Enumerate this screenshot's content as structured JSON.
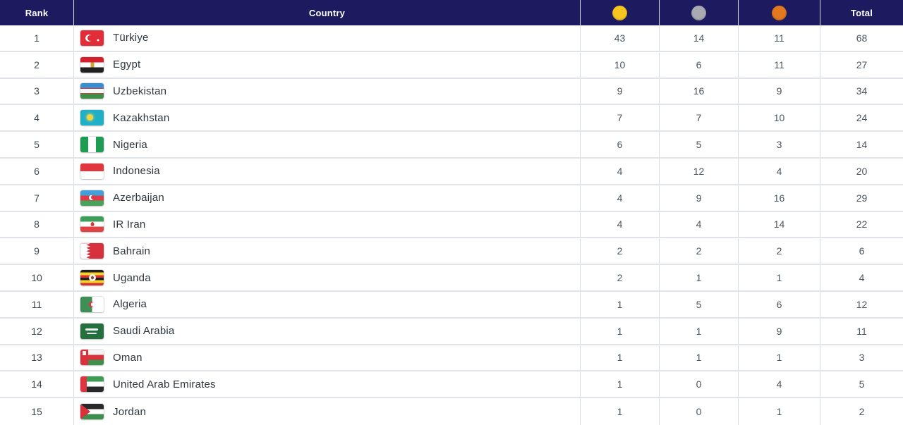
{
  "colors": {
    "header_bg": "#1e1a60",
    "header_text": "#ffffff",
    "gold": "#f6c51f",
    "silver": "#a9abb4",
    "bronze": "#e2791e",
    "row_border": "#e0e4e8",
    "number_text": "#4b555e",
    "country_text": "#2e363d"
  },
  "chart_data": {
    "type": "table",
    "columns": [
      {
        "key": "rank",
        "label": "Rank",
        "header_style": "text"
      },
      {
        "key": "country",
        "label": "Country",
        "header_style": "text"
      },
      {
        "key": "gold",
        "label": "",
        "header_style": "gold-circle-icon"
      },
      {
        "key": "silver",
        "label": "",
        "header_style": "silver-circle-icon"
      },
      {
        "key": "bronze",
        "label": "",
        "header_style": "bronze-circle-icon"
      },
      {
        "key": "total",
        "label": "Total",
        "header_style": "text"
      }
    ],
    "rows": [
      {
        "rank": "1",
        "country": "Türkiye",
        "flag": "turkiye",
        "gold": "43",
        "silver": "14",
        "bronze": "11",
        "total": "68"
      },
      {
        "rank": "2",
        "country": "Egypt",
        "flag": "egypt",
        "gold": "10",
        "silver": "6",
        "bronze": "11",
        "total": "27"
      },
      {
        "rank": "3",
        "country": "Uzbekistan",
        "flag": "uzbekistan",
        "gold": "9",
        "silver": "16",
        "bronze": "9",
        "total": "34"
      },
      {
        "rank": "4",
        "country": "Kazakhstan",
        "flag": "kazakhstan",
        "gold": "7",
        "silver": "7",
        "bronze": "10",
        "total": "24"
      },
      {
        "rank": "5",
        "country": "Nigeria",
        "flag": "nigeria",
        "gold": "6",
        "silver": "5",
        "bronze": "3",
        "total": "14"
      },
      {
        "rank": "6",
        "country": "Indonesia",
        "flag": "indonesia",
        "gold": "4",
        "silver": "12",
        "bronze": "4",
        "total": "20"
      },
      {
        "rank": "7",
        "country": "Azerbaijan",
        "flag": "azerbaijan",
        "gold": "4",
        "silver": "9",
        "bronze": "16",
        "total": "29"
      },
      {
        "rank": "8",
        "country": "IR Iran",
        "flag": "iran",
        "gold": "4",
        "silver": "4",
        "bronze": "14",
        "total": "22"
      },
      {
        "rank": "9",
        "country": "Bahrain",
        "flag": "bahrain",
        "gold": "2",
        "silver": "2",
        "bronze": "2",
        "total": "6"
      },
      {
        "rank": "10",
        "country": "Uganda",
        "flag": "uganda",
        "gold": "2",
        "silver": "1",
        "bronze": "1",
        "total": "4"
      },
      {
        "rank": "11",
        "country": "Algeria",
        "flag": "algeria",
        "gold": "1",
        "silver": "5",
        "bronze": "6",
        "total": "12"
      },
      {
        "rank": "12",
        "country": "Saudi Arabia",
        "flag": "saudi-arabia",
        "gold": "1",
        "silver": "1",
        "bronze": "9",
        "total": "11"
      },
      {
        "rank": "13",
        "country": "Oman",
        "flag": "oman",
        "gold": "1",
        "silver": "1",
        "bronze": "1",
        "total": "3"
      },
      {
        "rank": "14",
        "country": "United Arab Emirates",
        "flag": "uae",
        "gold": "1",
        "silver": "0",
        "bronze": "4",
        "total": "5"
      },
      {
        "rank": "15",
        "country": "Jordan",
        "flag": "jordan",
        "gold": "1",
        "silver": "0",
        "bronze": "1",
        "total": "2"
      }
    ]
  }
}
